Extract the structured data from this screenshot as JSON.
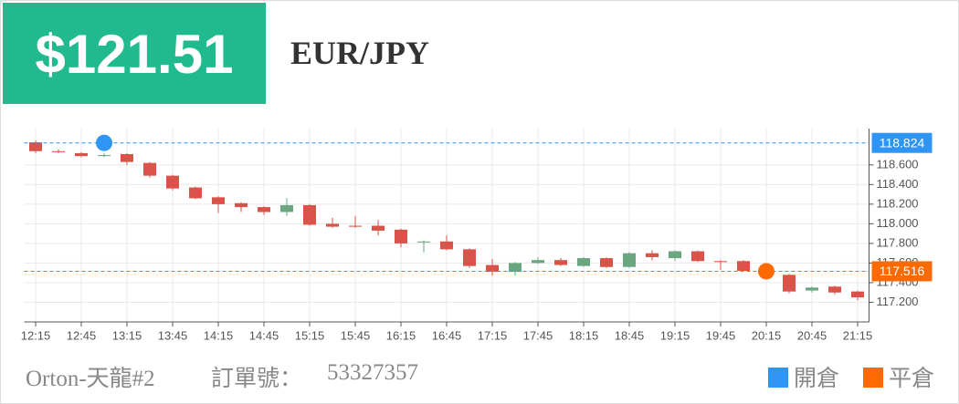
{
  "header": {
    "price": "$121.51",
    "symbol": "EUR/JPY"
  },
  "footer": {
    "account": "Orton-天龍#2",
    "order_label": "訂單號：",
    "order_number": "53327357"
  },
  "chart_data": {
    "type": "candlestick",
    "categories": [
      "12:15",
      null,
      "12:45",
      null,
      "13:15",
      null,
      "13:45",
      null,
      "14:15",
      null,
      "14:45",
      null,
      "15:15",
      null,
      "15:45",
      null,
      "16:15",
      null,
      "16:45",
      null,
      "17:15",
      null,
      "17:45",
      null,
      "18:15",
      null,
      "18:45",
      null,
      "19:15",
      null,
      "19:45",
      null,
      "20:15",
      null,
      "20:45",
      null,
      "21:15"
    ],
    "open": [
      118.83,
      118.74,
      118.72,
      118.69,
      118.71,
      118.62,
      118.49,
      118.37,
      118.27,
      118.21,
      118.17,
      118.12,
      118.19,
      118.0,
      117.98,
      117.98,
      117.94,
      117.81,
      117.82,
      117.74,
      117.58,
      117.51,
      117.6,
      117.63,
      117.57,
      117.65,
      117.56,
      117.7,
      117.65,
      117.72,
      117.62,
      117.62,
      117.54,
      117.48,
      117.32,
      117.36,
      117.31
    ],
    "high": [
      118.85,
      118.76,
      118.73,
      118.72,
      118.72,
      118.63,
      118.5,
      118.38,
      118.28,
      118.22,
      118.18,
      118.26,
      118.2,
      118.06,
      118.08,
      118.04,
      117.95,
      117.83,
      117.88,
      117.75,
      117.64,
      117.61,
      117.66,
      117.65,
      117.66,
      117.66,
      117.71,
      117.73,
      117.73,
      117.73,
      117.63,
      117.63,
      117.58,
      117.49,
      117.36,
      117.37,
      117.32
    ],
    "low": [
      118.72,
      118.72,
      118.68,
      118.68,
      118.6,
      118.47,
      118.34,
      118.25,
      118.11,
      118.12,
      118.09,
      118.08,
      117.98,
      117.96,
      117.96,
      117.88,
      117.76,
      117.71,
      117.73,
      117.55,
      117.47,
      117.47,
      117.59,
      117.57,
      117.56,
      117.55,
      117.55,
      117.63,
      117.62,
      117.61,
      117.53,
      117.51,
      117.47,
      117.29,
      117.3,
      117.28,
      117.22
    ],
    "close": [
      118.74,
      118.73,
      118.69,
      118.7,
      118.63,
      118.49,
      118.36,
      118.26,
      118.2,
      118.17,
      118.12,
      118.19,
      117.99,
      117.97,
      117.97,
      117.93,
      117.8,
      117.82,
      117.74,
      117.57,
      117.51,
      117.6,
      117.63,
      117.58,
      117.65,
      117.56,
      117.7,
      117.66,
      117.72,
      117.62,
      117.61,
      117.52,
      117.48,
      117.31,
      117.35,
      117.3,
      117.25
    ],
    "up_color": "#6aa680",
    "down_color": "#d9534a",
    "ylim": [
      117.0,
      118.97
    ],
    "yticks": [
      {
        "value": 117.2,
        "label": "117.200"
      },
      {
        "value": 117.4,
        "label": "117.400"
      },
      {
        "value": 117.6,
        "label": "117.600"
      },
      {
        "value": 117.8,
        "label": "117.800"
      },
      {
        "value": 118.0,
        "label": "118.000"
      },
      {
        "value": 118.2,
        "label": "118.200"
      },
      {
        "value": 118.4,
        "label": "118.400"
      },
      {
        "value": 118.6,
        "label": "118.600"
      }
    ],
    "grid": true,
    "markers": [
      {
        "name": "開倉",
        "color": "#2f95f5",
        "value": 118.824,
        "index": 3
      },
      {
        "name": "平倉",
        "color": "#ff6a00",
        "value": 117.516,
        "index": 32
      }
    ]
  }
}
